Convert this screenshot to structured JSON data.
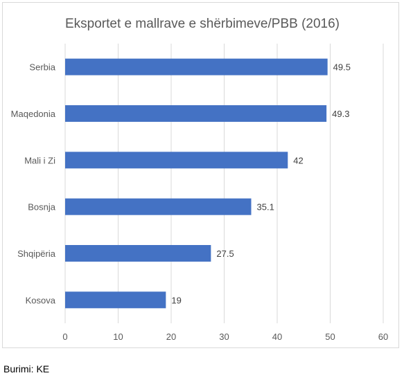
{
  "chart_data": {
    "type": "bar",
    "orientation": "horizontal",
    "title": "Eksportet e mallrave e shërbimeve/PBB (2016)",
    "categories": [
      "Serbia",
      "Maqedonia",
      "Mali i Zi",
      "Bosnja",
      "Shqipëria",
      "Kosova"
    ],
    "values": [
      49.5,
      49.3,
      42,
      35.1,
      27.5,
      19
    ],
    "value_labels": [
      "49.5",
      "49.3",
      "42",
      "35.1",
      "27.5",
      "19"
    ],
    "xlim": [
      0,
      60
    ],
    "xticks": [
      "0",
      "10",
      "20",
      "30",
      "40",
      "50",
      "60"
    ],
    "grid": "vertical",
    "bar_color": "#4472c4"
  },
  "source": "Burimi: KE"
}
